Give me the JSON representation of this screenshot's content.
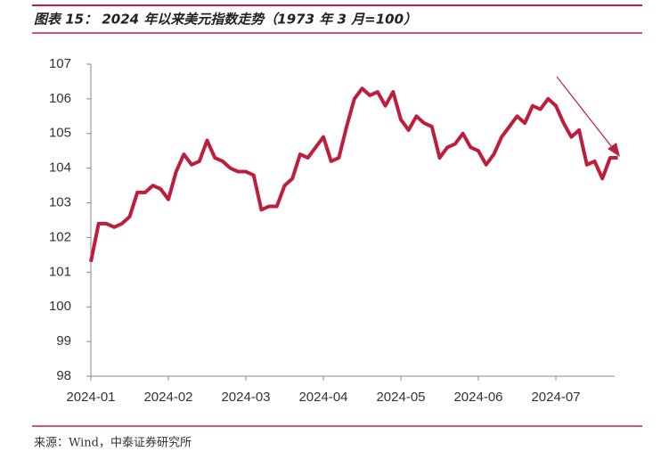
{
  "chart_data": {
    "type": "line",
    "title": "图表 15：  2024 年以来美元指数走势（1973 年 3 月=100）",
    "source": "来源：Wind，中泰证券研究所",
    "categories": [
      "2024-01",
      null,
      null,
      null,
      null,
      null,
      null,
      null,
      null,
      null,
      "2024-02",
      null,
      null,
      null,
      null,
      null,
      null,
      null,
      null,
      null,
      "2024-03",
      null,
      null,
      null,
      null,
      null,
      null,
      null,
      null,
      null,
      "2024-04",
      null,
      null,
      null,
      null,
      null,
      null,
      null,
      null,
      null,
      "2024-05",
      null,
      null,
      null,
      null,
      null,
      null,
      null,
      null,
      null,
      "2024-06",
      null,
      null,
      null,
      null,
      null,
      null,
      null,
      null,
      null,
      "2024-07",
      null,
      null,
      null,
      null,
      null,
      null,
      null,
      null
    ],
    "series": [
      {
        "color": "#be1e3c",
        "values": [
          101.3,
          102.4,
          102.4,
          102.3,
          102.4,
          102.6,
          103.3,
          103.3,
          103.5,
          103.4,
          103.1,
          103.9,
          104.4,
          104.1,
          104.2,
          104.8,
          104.3,
          104.2,
          104.0,
          103.9,
          103.9,
          103.8,
          102.8,
          102.9,
          102.9,
          103.5,
          103.7,
          104.4,
          104.3,
          104.6,
          104.9,
          104.2,
          104.3,
          105.2,
          106.0,
          106.3,
          106.1,
          106.2,
          105.8,
          106.2,
          105.4,
          105.1,
          105.5,
          105.3,
          105.2,
          104.3,
          104.6,
          104.7,
          105.0,
          104.6,
          104.5,
          104.1,
          104.4,
          104.9,
          105.2,
          105.5,
          105.3,
          105.8,
          105.7,
          106.0,
          105.8,
          105.3,
          104.9,
          105.1,
          104.1,
          104.2,
          103.7,
          104.3,
          104.3
        ]
      }
    ],
    "ylim": [
      98,
      107
    ],
    "yticks": [
      98,
      99,
      100,
      101,
      102,
      103,
      104,
      105,
      106,
      107
    ]
  }
}
